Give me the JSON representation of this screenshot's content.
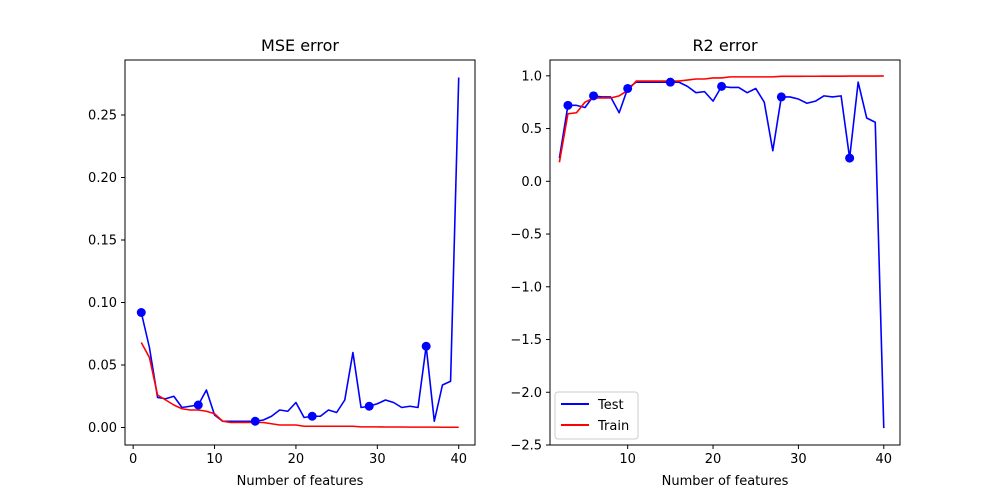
{
  "chart_data": [
    {
      "type": "line",
      "title": "MSE error",
      "xlabel": "Number of features",
      "ylabel": "",
      "xlim": [
        -1,
        42
      ],
      "ylim": [
        -0.014,
        0.294
      ],
      "xticks": [
        0,
        10,
        20,
        30,
        40
      ],
      "xtick_labels": [
        "0",
        "10",
        "20",
        "30",
        "40"
      ],
      "yticks": [
        0.0,
        0.05,
        0.1,
        0.15,
        0.2,
        0.25
      ],
      "ytick_labels": [
        "0.00",
        "0.05",
        "0.10",
        "0.15",
        "0.20",
        "0.25"
      ],
      "grid": false,
      "series": [
        {
          "name": "Test",
          "color": "#0000ff",
          "markers_every": 7,
          "x": [
            1,
            2,
            3,
            4,
            5,
            6,
            7,
            8,
            9,
            10,
            11,
            12,
            13,
            14,
            15,
            16,
            17,
            18,
            19,
            20,
            21,
            22,
            23,
            24,
            25,
            26,
            27,
            28,
            29,
            30,
            31,
            32,
            33,
            34,
            35,
            36,
            37,
            38,
            39,
            40
          ],
          "y": [
            0.092,
            0.064,
            0.024,
            0.023,
            0.025,
            0.016,
            0.017,
            0.018,
            0.03,
            0.01,
            0.005,
            0.005,
            0.005,
            0.005,
            0.005,
            0.006,
            0.009,
            0.014,
            0.013,
            0.02,
            0.008,
            0.009,
            0.009,
            0.014,
            0.012,
            0.022,
            0.06,
            0.016,
            0.017,
            0.019,
            0.022,
            0.02,
            0.016,
            0.017,
            0.016,
            0.065,
            0.005,
            0.034,
            0.037,
            0.28
          ]
        },
        {
          "name": "Train",
          "color": "#ff0000",
          "markers_every": 0,
          "x": [
            1,
            2,
            3,
            4,
            5,
            6,
            7,
            8,
            9,
            10,
            11,
            12,
            13,
            14,
            15,
            16,
            17,
            18,
            19,
            20,
            21,
            22,
            23,
            24,
            25,
            26,
            27,
            28,
            29,
            30,
            31,
            32,
            33,
            34,
            35,
            36,
            37,
            38,
            39,
            40
          ],
          "y": [
            0.068,
            0.056,
            0.026,
            0.022,
            0.018,
            0.015,
            0.014,
            0.014,
            0.013,
            0.011,
            0.005,
            0.004,
            0.004,
            0.004,
            0.004,
            0.004,
            0.003,
            0.002,
            0.002,
            0.002,
            0.001,
            0.001,
            0.001,
            0.001,
            0.001,
            0.001,
            0.001,
            0.0005,
            0.0005,
            0.0005,
            0.0004,
            0.0004,
            0.0004,
            0.0003,
            0.0003,
            0.0003,
            0.0003,
            0.0002,
            0.0002,
            0.0002
          ]
        }
      ]
    },
    {
      "type": "line",
      "title": "R2 error",
      "xlabel": "Number of features",
      "ylabel": "",
      "xlim": [
        0.9,
        41.9
      ],
      "ylim": [
        -2.5,
        1.15
      ],
      "xticks": [
        10,
        20,
        30,
        40
      ],
      "xtick_labels": [
        "10",
        "20",
        "30",
        "40"
      ],
      "yticks": [
        -2.5,
        -2.0,
        -1.5,
        -1.0,
        -0.5,
        0.0,
        0.5,
        1.0
      ],
      "ytick_labels": [
        "−2.5",
        "−2.0",
        "−1.5",
        "−1.0",
        "−0.5",
        "0.0",
        "0.5",
        "1.0"
      ],
      "grid": false,
      "legend": {
        "position": "lower-left",
        "entries": [
          {
            "label": "Test",
            "color": "#0000ff"
          },
          {
            "label": "Train",
            "color": "#ff0000"
          }
        ]
      },
      "series": [
        {
          "name": "Test",
          "color": "#0000ff",
          "marker_points": [
            3,
            6,
            10,
            15,
            21,
            28,
            36
          ],
          "x": [
            2,
            3,
            4,
            5,
            6,
            7,
            8,
            9,
            10,
            11,
            12,
            13,
            14,
            15,
            16,
            17,
            18,
            19,
            20,
            21,
            22,
            23,
            24,
            25,
            26,
            27,
            28,
            29,
            30,
            31,
            32,
            33,
            34,
            35,
            36,
            37,
            38,
            39,
            40
          ],
          "y": [
            0.22,
            0.72,
            0.72,
            0.7,
            0.81,
            0.8,
            0.8,
            0.65,
            0.88,
            0.94,
            0.94,
            0.94,
            0.94,
            0.94,
            0.94,
            0.9,
            0.84,
            0.85,
            0.76,
            0.9,
            0.89,
            0.89,
            0.84,
            0.88,
            0.75,
            0.29,
            0.8,
            0.8,
            0.78,
            0.74,
            0.76,
            0.81,
            0.8,
            0.81,
            0.22,
            0.94,
            0.6,
            0.56,
            -2.34
          ]
        },
        {
          "name": "Train",
          "color": "#ff0000",
          "marker_points": [],
          "x": [
            2,
            3,
            4,
            5,
            6,
            7,
            8,
            9,
            10,
            11,
            12,
            13,
            14,
            15,
            16,
            17,
            18,
            19,
            20,
            21,
            22,
            23,
            24,
            25,
            26,
            27,
            28,
            29,
            30,
            31,
            32,
            33,
            34,
            35,
            36,
            37,
            38,
            39,
            40
          ],
          "y": [
            0.18,
            0.64,
            0.65,
            0.75,
            0.79,
            0.79,
            0.79,
            0.81,
            0.86,
            0.95,
            0.95,
            0.95,
            0.95,
            0.95,
            0.95,
            0.96,
            0.97,
            0.97,
            0.98,
            0.98,
            0.99,
            0.99,
            0.99,
            0.99,
            0.99,
            0.99,
            0.995,
            0.995,
            0.995,
            0.996,
            0.996,
            0.997,
            0.997,
            0.997,
            0.998,
            0.998,
            0.998,
            0.998,
            0.999
          ]
        }
      ]
    }
  ]
}
